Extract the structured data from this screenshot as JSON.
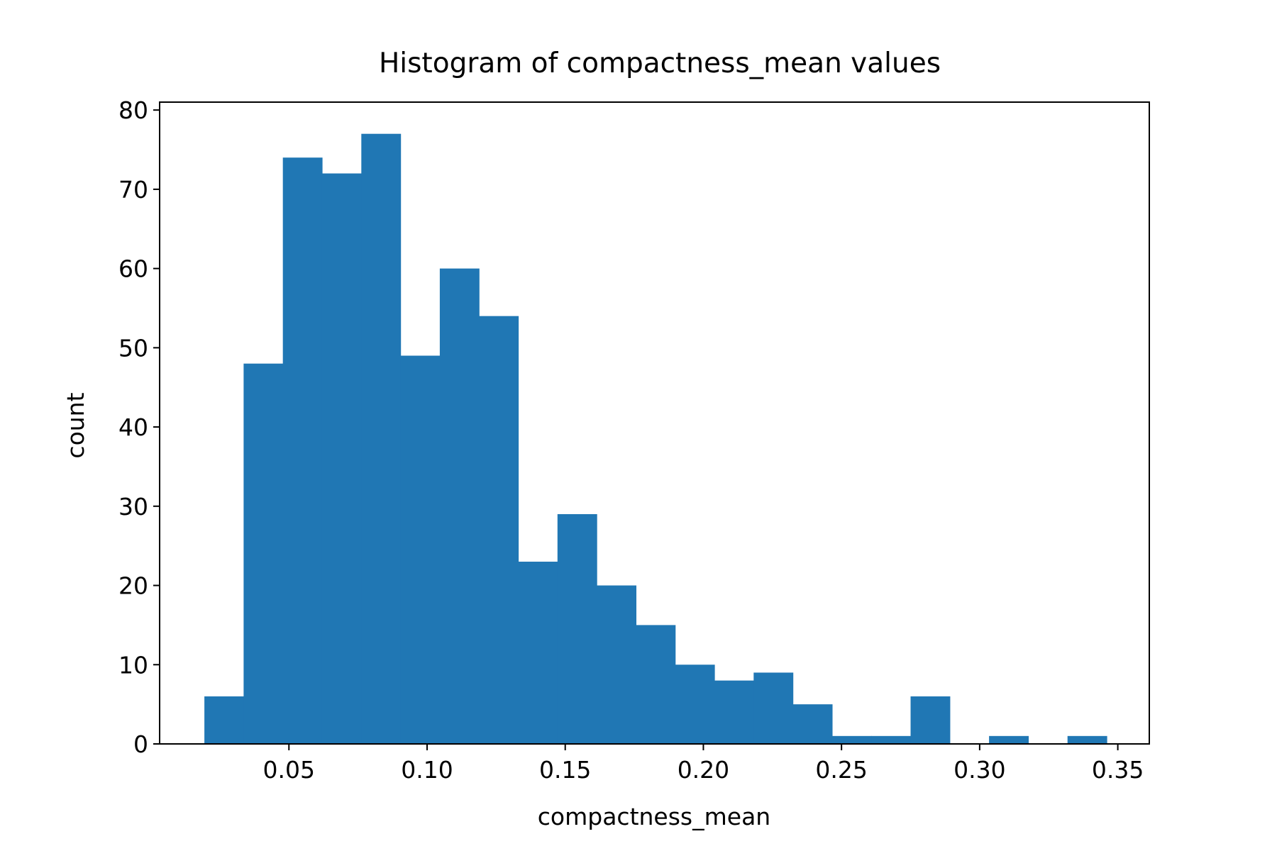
{
  "chart_data": {
    "type": "bar",
    "subtype": "histogram",
    "title": "Histogram of compactness_mean values",
    "xlabel": "compactness_mean",
    "ylabel": "count",
    "bar_color": "#2077b4",
    "grid": false,
    "legend": false,
    "xlim": [
      0.0032,
      0.3614
    ],
    "ylim": [
      0,
      81
    ],
    "xticks": [
      0.05,
      0.1,
      0.15,
      0.2,
      0.25,
      0.3,
      0.35
    ],
    "xtick_labels": [
      "0.05",
      "0.10",
      "0.15",
      "0.20",
      "0.25",
      "0.30",
      "0.35"
    ],
    "yticks": [
      0,
      10,
      20,
      30,
      40,
      50,
      60,
      70,
      80
    ],
    "ytick_labels": [
      "0",
      "10",
      "20",
      "30",
      "40",
      "50",
      "60",
      "70",
      "80"
    ],
    "bin_edges": [
      0.0194,
      0.0336,
      0.0478,
      0.062,
      0.0762,
      0.0904,
      0.1046,
      0.1188,
      0.133,
      0.1472,
      0.1614,
      0.1756,
      0.1898,
      0.204,
      0.2182,
      0.2324,
      0.2466,
      0.2608,
      0.275,
      0.2892,
      0.3034,
      0.3176,
      0.3318,
      0.346
    ],
    "counts": [
      6,
      48,
      74,
      72,
      77,
      49,
      60,
      54,
      23,
      29,
      20,
      15,
      10,
      8,
      9,
      5,
      1,
      1,
      6,
      0,
      1,
      0,
      1
    ]
  }
}
